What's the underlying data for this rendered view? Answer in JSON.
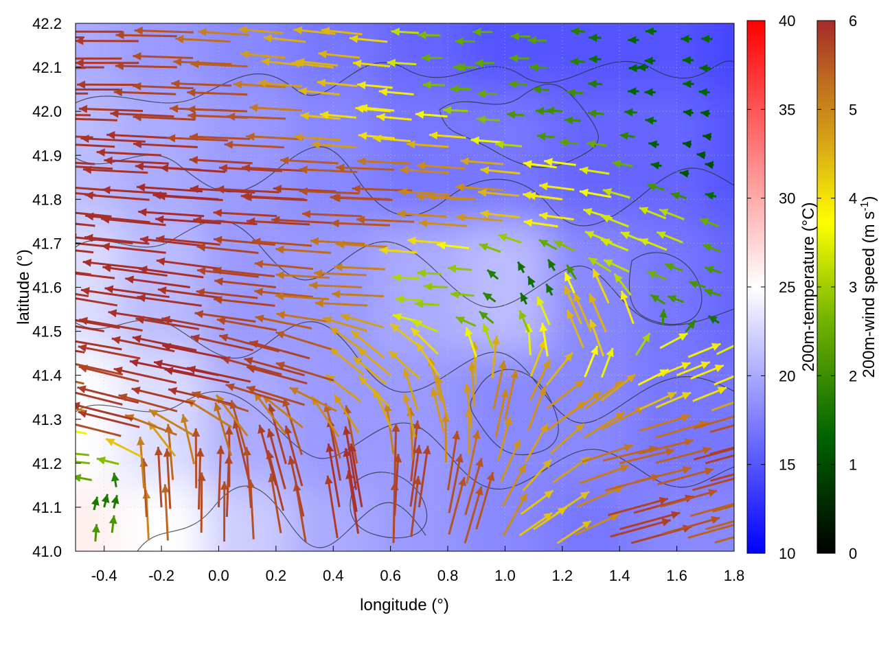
{
  "chart_data": {
    "type": "heatmap",
    "title": "",
    "xlabel": "longitude (°)",
    "ylabel": "latitude (°)",
    "xlim": [
      -0.5,
      1.8
    ],
    "ylim": [
      41.0,
      42.2
    ],
    "x_ticks": [
      "-0.4",
      "-0.2",
      "0.0",
      "0.2",
      "0.4",
      "0.6",
      "0.8",
      "1.0",
      "1.2",
      "1.4",
      "1.6",
      "1.8"
    ],
    "y_ticks": [
      "41.0",
      "41.1",
      "41.2",
      "41.3",
      "41.4",
      "41.5",
      "41.6",
      "41.7",
      "41.8",
      "41.9",
      "42.0",
      "42.1",
      "42.2"
    ],
    "grid": true,
    "temperature_colorbar": {
      "label": "200m-temperature (°C)",
      "range": [
        10,
        40
      ],
      "ticks": [
        "10",
        "15",
        "20",
        "25",
        "30",
        "35",
        "40"
      ],
      "colors": [
        "#0000ff",
        "#ffffff",
        "#ff0000"
      ]
    },
    "windspeed_colorbar": {
      "label_main": "200m-wind speed (m s",
      "label_sup": "-1",
      "label_end": ")",
      "range": [
        0,
        6
      ],
      "ticks": [
        "0",
        "1",
        "2",
        "3",
        "4",
        "5",
        "6"
      ],
      "colors": [
        "#000000",
        "#006400",
        "#7ab800",
        "#ffff00",
        "#d4a017",
        "#c0701e",
        "#a52a2a"
      ]
    },
    "temperature_field": {
      "description_values": "approximate 200 m temperature (°C) on a coarse grid",
      "lon": [
        -0.5,
        -0.2,
        0.1,
        0.4,
        0.7,
        1.0,
        1.3,
        1.6,
        1.8
      ],
      "lat": [
        41.0,
        41.3,
        41.6,
        41.9,
        42.2
      ],
      "values": [
        [
          26,
          25,
          22,
          20,
          19,
          18,
          17,
          18,
          18
        ],
        [
          25,
          23,
          20,
          19,
          19,
          18,
          18,
          17,
          17
        ],
        [
          23,
          21,
          19,
          19,
          20,
          21,
          18,
          17,
          16
        ],
        [
          21,
          20,
          19,
          18,
          17,
          17,
          16,
          16,
          15
        ],
        [
          20,
          19,
          18,
          17,
          16,
          15,
          15,
          15,
          14
        ]
      ]
    },
    "wind_field": {
      "units": "m s-1",
      "vectors": [
        {
          "lon": -0.4,
          "lat": 42.1,
          "u": -5.8,
          "v": 0.0
        },
        {
          "lon": -0.2,
          "lat": 41.9,
          "u": -5.9,
          "v": 0.3
        },
        {
          "lon": 0.1,
          "lat": 42.0,
          "u": -5.5,
          "v": 0.2
        },
        {
          "lon": 0.4,
          "lat": 42.1,
          "u": -3.8,
          "v": 0.4
        },
        {
          "lon": 0.6,
          "lat": 42.0,
          "u": -3.2,
          "v": 0.3
        },
        {
          "lon": 0.9,
          "lat": 42.1,
          "u": -1.8,
          "v": 0.0
        },
        {
          "lon": 1.2,
          "lat": 42.0,
          "u": -1.5,
          "v": 0.1
        },
        {
          "lon": 1.5,
          "lat": 42.1,
          "u": -1.0,
          "v": 0.0
        },
        {
          "lon": 1.7,
          "lat": 41.9,
          "u": -0.8,
          "v": 0.1
        },
        {
          "lon": -0.3,
          "lat": 41.7,
          "u": -5.9,
          "v": 0.6
        },
        {
          "lon": 0.0,
          "lat": 41.8,
          "u": -6.0,
          "v": 0.4
        },
        {
          "lon": 0.3,
          "lat": 41.8,
          "u": -5.8,
          "v": 0.3
        },
        {
          "lon": 0.6,
          "lat": 41.8,
          "u": -5.5,
          "v": 0.2
        },
        {
          "lon": 0.9,
          "lat": 41.8,
          "u": -4.5,
          "v": 0.3
        },
        {
          "lon": 1.2,
          "lat": 41.8,
          "u": -3.2,
          "v": 0.4
        },
        {
          "lon": 1.5,
          "lat": 41.7,
          "u": -2.5,
          "v": 1.0
        },
        {
          "lon": 1.7,
          "lat": 41.6,
          "u": -1.5,
          "v": 0.5
        },
        {
          "lon": -0.4,
          "lat": 41.5,
          "u": -5.8,
          "v": 1.0
        },
        {
          "lon": -0.1,
          "lat": 41.6,
          "u": -5.9,
          "v": 0.8
        },
        {
          "lon": 0.2,
          "lat": 41.6,
          "u": -5.6,
          "v": 0.6
        },
        {
          "lon": 0.5,
          "lat": 41.6,
          "u": -4.8,
          "v": 0.2
        },
        {
          "lon": 0.8,
          "lat": 41.6,
          "u": -2.2,
          "v": 0.1
        },
        {
          "lon": 1.1,
          "lat": 41.6,
          "u": -0.5,
          "v": 1.0
        },
        {
          "lon": 1.3,
          "lat": 41.5,
          "u": -1.5,
          "v": 3.5
        },
        {
          "lon": 1.6,
          "lat": 41.4,
          "u": 3.0,
          "v": 1.2
        },
        {
          "lon": -0.3,
          "lat": 41.3,
          "u": -5.6,
          "v": 1.4
        },
        {
          "lon": 0.0,
          "lat": 41.4,
          "u": -5.9,
          "v": 1.2
        },
        {
          "lon": 0.3,
          "lat": 41.4,
          "u": -5.5,
          "v": 1.5
        },
        {
          "lon": 0.6,
          "lat": 41.4,
          "u": -3.0,
          "v": 2.5
        },
        {
          "lon": 0.8,
          "lat": 41.3,
          "u": -1.0,
          "v": 4.0
        },
        {
          "lon": 1.0,
          "lat": 41.3,
          "u": 1.0,
          "v": 4.5
        },
        {
          "lon": 1.2,
          "lat": 41.3,
          "u": 3.5,
          "v": 2.5
        },
        {
          "lon": 1.4,
          "lat": 41.2,
          "u": 5.0,
          "v": 1.2
        },
        {
          "lon": 1.7,
          "lat": 41.2,
          "u": 5.5,
          "v": 1.5
        },
        {
          "lon": -0.45,
          "lat": 41.2,
          "u": -2.0,
          "v": 0.2
        },
        {
          "lon": -0.4,
          "lat": 41.1,
          "u": 0.3,
          "v": 1.2
        },
        {
          "lon": -0.2,
          "lat": 41.1,
          "u": -0.3,
          "v": 5.5
        },
        {
          "lon": 0.0,
          "lat": 41.1,
          "u": 0.2,
          "v": 5.6
        },
        {
          "lon": 0.2,
          "lat": 41.15,
          "u": -1.5,
          "v": 5.5
        },
        {
          "lon": 0.5,
          "lat": 41.1,
          "u": -1.0,
          "v": 5.8
        },
        {
          "lon": 0.7,
          "lat": 41.1,
          "u": 0.8,
          "v": 5.6
        },
        {
          "lon": 0.9,
          "lat": 41.05,
          "u": 1.5,
          "v": 5.2
        },
        {
          "lon": 1.1,
          "lat": 41.05,
          "u": 3.0,
          "v": 2.0
        },
        {
          "lon": 1.4,
          "lat": 41.05,
          "u": 5.5,
          "v": 1.5
        },
        {
          "lon": 1.7,
          "lat": 41.05,
          "u": 5.0,
          "v": 1.4
        }
      ]
    }
  }
}
